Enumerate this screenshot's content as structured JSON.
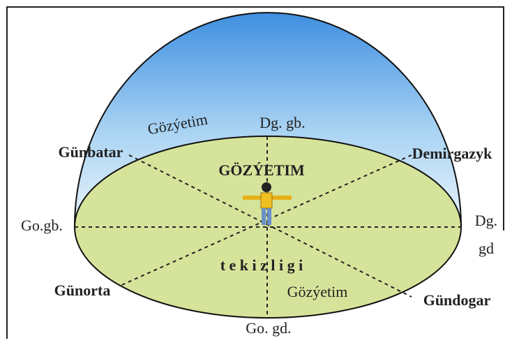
{
  "labels": [
    "Gözýetim",
    "Dg. gb.",
    "Günbatar",
    "GÖZÝETIM",
    "Demirgazyk",
    "Go.gb.",
    "Dg.",
    "gd",
    "t e k i z l i g i",
    "Günorta",
    "Gözýetim",
    "Gündogar",
    "Go. gd."
  ]
}
